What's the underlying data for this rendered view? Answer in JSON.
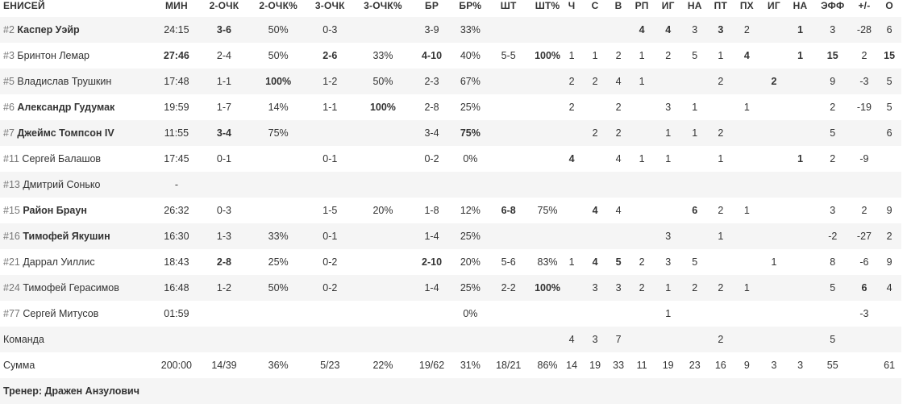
{
  "team_name": "ЕНИСЕЙ",
  "columns": [
    "МИН",
    "2-ОЧК",
    "2-ОЧК%",
    "3-ОЧК",
    "3-ОЧК%",
    "БР",
    "БР%",
    "ШТ",
    "ШТ%",
    "Ч",
    "С",
    "В",
    "РП",
    "ИГ",
    "НА",
    "ПТ",
    "ПХ",
    "ИГ",
    "НА",
    "ЭФФ",
    "+/-",
    "О"
  ],
  "players": [
    {
      "num": "#2",
      "name": "Каспер Уэйр",
      "bold": true,
      "cells": [
        "24:15",
        "3-6",
        "50%",
        "0-3",
        "",
        "3-9",
        "33%",
        "",
        "",
        "",
        "",
        "",
        "4",
        "4",
        "3",
        "3",
        "2",
        "",
        "1",
        "3",
        "-28",
        "6"
      ],
      "bold_cells": [
        1,
        12,
        13,
        15,
        18
      ]
    },
    {
      "num": "#3",
      "name": "Бринтон Лемар",
      "bold": false,
      "cells": [
        "27:46",
        "2-4",
        "50%",
        "2-6",
        "33%",
        "4-10",
        "40%",
        "5-5",
        "100%",
        "1",
        "1",
        "2",
        "1",
        "2",
        "5",
        "1",
        "4",
        "",
        "1",
        "15",
        "2",
        "15"
      ],
      "bold_cells": [
        0,
        3,
        5,
        8,
        16,
        18,
        19,
        21
      ]
    },
    {
      "num": "#5",
      "name": "Владислав Трушкин",
      "bold": false,
      "cells": [
        "17:48",
        "1-1",
        "100%",
        "1-2",
        "50%",
        "2-3",
        "67%",
        "",
        "",
        "2",
        "2",
        "4",
        "1",
        "",
        "",
        "2",
        "",
        "2",
        "",
        "9",
        "-3",
        "5"
      ],
      "bold_cells": [
        2,
        17
      ]
    },
    {
      "num": "#6",
      "name": "Александр Гудумак",
      "bold": true,
      "cells": [
        "19:59",
        "1-7",
        "14%",
        "1-1",
        "100%",
        "2-8",
        "25%",
        "",
        "",
        "2",
        "",
        "2",
        "",
        "3",
        "1",
        "",
        "1",
        "",
        "",
        "2",
        "-19",
        "5"
      ],
      "bold_cells": [
        4
      ]
    },
    {
      "num": "#7",
      "name": "Джеймс Томпсон IV",
      "bold": true,
      "cells": [
        "11:55",
        "3-4",
        "75%",
        "",
        "",
        "3-4",
        "75%",
        "",
        "",
        "",
        "2",
        "2",
        "",
        "1",
        "1",
        "2",
        "",
        "",
        "",
        "5",
        "",
        "6"
      ],
      "bold_cells": [
        1,
        6
      ]
    },
    {
      "num": "#11",
      "name": "Сергей Балашов",
      "bold": false,
      "cells": [
        "17:45",
        "0-1",
        "",
        "0-1",
        "",
        "0-2",
        "0%",
        "",
        "",
        "4",
        "",
        "4",
        "1",
        "1",
        "",
        "1",
        "",
        "",
        "1",
        "2",
        "-9",
        ""
      ],
      "bold_cells": [
        9,
        18
      ]
    },
    {
      "num": "#13",
      "name": "Дмитрий Сонько",
      "bold": false,
      "cells": [
        "-",
        "",
        "",
        "",
        "",
        "",
        "",
        "",
        "",
        "",
        "",
        "",
        "",
        "",
        "",
        "",
        "",
        "",
        "",
        "",
        "",
        ""
      ],
      "bold_cells": []
    },
    {
      "num": "#15",
      "name": "Район Браун",
      "bold": true,
      "cells": [
        "26:32",
        "0-3",
        "",
        "1-5",
        "20%",
        "1-8",
        "12%",
        "6-8",
        "75%",
        "",
        "4",
        "4",
        "",
        "",
        "6",
        "2",
        "1",
        "",
        "",
        "3",
        "2",
        "9"
      ],
      "bold_cells": [
        7,
        10,
        14
      ]
    },
    {
      "num": "#16",
      "name": "Тимофей Якушин",
      "bold": true,
      "cells": [
        "16:30",
        "1-3",
        "33%",
        "0-1",
        "",
        "1-4",
        "25%",
        "",
        "",
        "",
        "",
        "",
        "",
        "3",
        "",
        "1",
        "",
        "",
        "",
        "-2",
        "-27",
        "2"
      ],
      "bold_cells": []
    },
    {
      "num": "#21",
      "name": "Даррал Уиллис",
      "bold": false,
      "cells": [
        "18:43",
        "2-8",
        "25%",
        "0-2",
        "",
        "2-10",
        "20%",
        "5-6",
        "83%",
        "1",
        "4",
        "5",
        "2",
        "3",
        "5",
        "",
        "",
        "1",
        "",
        "8",
        "-6",
        "9"
      ],
      "bold_cells": [
        1,
        5,
        10,
        11
      ]
    },
    {
      "num": "#24",
      "name": "Тимофей Герасимов",
      "bold": false,
      "cells": [
        "16:48",
        "1-2",
        "50%",
        "0-2",
        "",
        "1-4",
        "25%",
        "2-2",
        "100%",
        "",
        "3",
        "3",
        "2",
        "1",
        "2",
        "2",
        "1",
        "",
        "",
        "5",
        "6",
        "4"
      ],
      "bold_cells": [
        8,
        20
      ]
    },
    {
      "num": "#77",
      "name": "Сергей Митусов",
      "bold": false,
      "cells": [
        "01:59",
        "",
        "",
        "",
        "",
        "",
        "0%",
        "",
        "",
        "",
        "",
        "",
        "",
        "1",
        "",
        "",
        "",
        "",
        "",
        "",
        "-3",
        ""
      ],
      "bold_cells": []
    }
  ],
  "team_row": {
    "label": "Команда",
    "cells": [
      "",
      "",
      "",
      "",
      "",
      "",
      "",
      "",
      "",
      "4",
      "3",
      "7",
      "",
      "",
      "",
      "2",
      "",
      "",
      "",
      "5",
      "",
      ""
    ]
  },
  "total_row": {
    "label": "Сумма",
    "cells": [
      "200:00",
      "14/39",
      "36%",
      "5/23",
      "22%",
      "19/62",
      "31%",
      "18/21",
      "86%",
      "14",
      "19",
      "33",
      "11",
      "19",
      "23",
      "16",
      "9",
      "3",
      "3",
      "55",
      "",
      "61"
    ]
  },
  "coach": "Тренер: Дражен Анзулович"
}
